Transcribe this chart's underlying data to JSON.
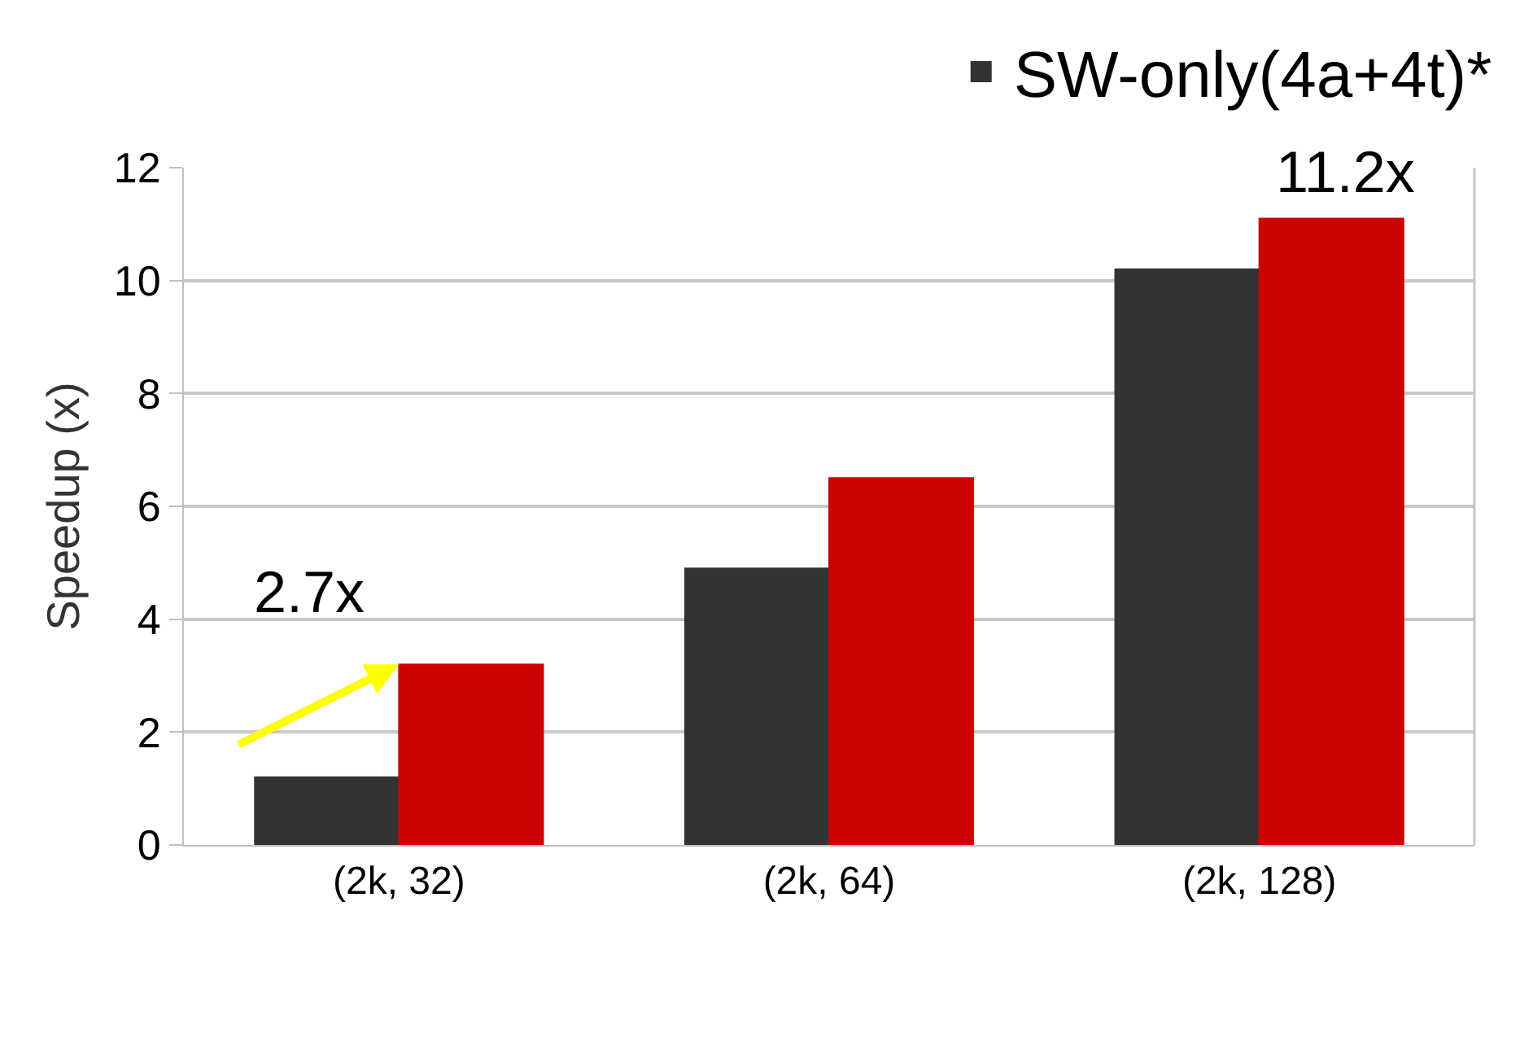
{
  "chart_data": {
    "type": "bar",
    "ylabel": "Speedup (x)",
    "categories": [
      "(2k, 32)",
      "(2k, 64)",
      "(2k, 128)"
    ],
    "series": [
      {
        "name": "SW-only(4a+4t)*",
        "color": "#333333",
        "values": [
          1.2,
          4.9,
          10.2
        ]
      },
      {
        "color": "#cc0000",
        "values": [
          3.2,
          6.5,
          11.1
        ]
      }
    ],
    "ylim": [
      0,
      12
    ],
    "yticks": [
      0,
      2,
      4,
      6,
      8,
      10,
      12
    ],
    "grid": "y",
    "legend": "top right",
    "annotations": [
      {
        "text": "2.7x",
        "x": "(2k, 32)",
        "y": 3.2
      },
      {
        "text": "11.2x",
        "x": "(2k, 128)",
        "y": 11.1
      }
    ]
  }
}
